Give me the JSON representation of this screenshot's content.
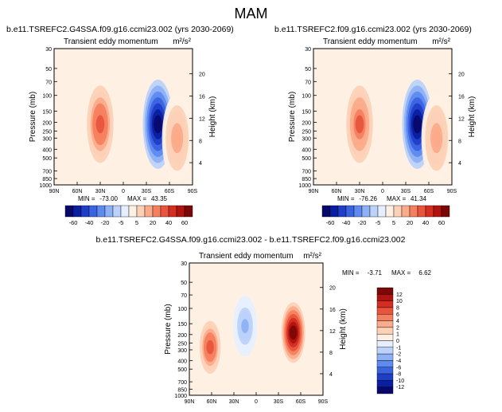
{
  "figure_title": "MAM",
  "chart_data": [
    {
      "type": "heatmap",
      "run": "b.e11.TSREFC2.G4SSA.f09.g16.ccmi23.002 (yrs 2030-2069)",
      "left_string": "Transient eddy momentum",
      "units": "m²/s²",
      "ylabel": "Pressure (mb)",
      "y2label": "Height (km)",
      "x_ticks": [
        "90N",
        "60N",
        "30N",
        "0",
        "30S",
        "60S",
        "90S"
      ],
      "p_ticks": [
        30,
        50,
        70,
        100,
        150,
        200,
        250,
        300,
        400,
        500,
        700,
        850,
        1000
      ],
      "h_ticks": [
        4,
        8,
        12,
        16,
        20
      ],
      "stats": {
        "min_label": "MIN =",
        "min": "-73.00",
        "max_label": "MAX =",
        "max": "43.35"
      },
      "colorbar_levels": [
        "-60",
        "-40",
        "-20",
        "-5",
        "5",
        "20",
        "40",
        "60"
      ],
      "features": [
        {
          "lat": 30,
          "p": 210,
          "value": 43.35
        },
        {
          "lat": -45,
          "p": 210,
          "value": -73.0
        },
        {
          "lat": -70,
          "p": 300,
          "value": 25
        }
      ]
    },
    {
      "type": "heatmap",
      "run": "b.e11.TSREFC2.f09.g16.ccmi23.002 (yrs 2030-2069)",
      "left_string": "Transient eddy momentum",
      "units": "m²/s²",
      "ylabel": "Pressure (mb)",
      "y2label": "Height (km)",
      "x_ticks": [
        "90N",
        "60N",
        "30N",
        "0",
        "30S",
        "60S",
        "90S"
      ],
      "p_ticks": [
        30,
        50,
        70,
        100,
        150,
        200,
        250,
        300,
        400,
        500,
        700,
        850,
        1000
      ],
      "h_ticks": [
        4,
        8,
        12,
        16,
        20
      ],
      "stats": {
        "min_label": "MIN =",
        "min": "-76.26",
        "max_label": "MAX =",
        "max": "41.34"
      },
      "colorbar_levels": [
        "-60",
        "-40",
        "-20",
        "-5",
        "5",
        "20",
        "40",
        "60"
      ],
      "features": [
        {
          "lat": 30,
          "p": 210,
          "value": 41.34
        },
        {
          "lat": -45,
          "p": 210,
          "value": -76.26
        },
        {
          "lat": -70,
          "p": 300,
          "value": 25
        }
      ]
    },
    {
      "type": "heatmap",
      "run": "b.e11.TSREFC2.G4SSA.f09.g16.ccmi23.002 - b.e11.TSREFC2.f09.g16.ccmi23.002",
      "left_string": "Transient eddy momentum",
      "units": "m²/s²",
      "ylabel": "Pressure (mb)",
      "y2label": "Height (km)",
      "x_ticks": [
        "90N",
        "60N",
        "30N",
        "0",
        "30S",
        "60S",
        "90S"
      ],
      "p_ticks": [
        30,
        50,
        70,
        100,
        150,
        200,
        250,
        300,
        400,
        500,
        700,
        850,
        1000
      ],
      "h_ticks": [
        4,
        8,
        12,
        16,
        20
      ],
      "stats": {
        "min_label": "MIN =",
        "min": "-3.71",
        "max_label": "MAX =",
        "max": "6.62"
      },
      "colorbar_levels": [
        "12",
        "10",
        "8",
        "6",
        "4",
        "2",
        "1",
        "0",
        "-1",
        "-2",
        "-4",
        "-6",
        "-8",
        "-10",
        "-12"
      ],
      "features": [
        {
          "lat": 62,
          "p": 280,
          "value": 4
        },
        {
          "lat": -50,
          "p": 190,
          "value": 6.62
        },
        {
          "lat": 15,
          "p": 160,
          "value": -2
        }
      ]
    }
  ],
  "colors": {
    "diverging_16": [
      "#08086b",
      "#0a1fa0",
      "#1f3ec8",
      "#3b63e0",
      "#5f8aef",
      "#8eb1f6",
      "#bcd2fa",
      "#e6efff",
      "#fff0e4",
      "#fdd1b6",
      "#fbab8a",
      "#f5805f",
      "#e8553c",
      "#d42d22",
      "#b1130f",
      "#7c0707"
    ]
  }
}
